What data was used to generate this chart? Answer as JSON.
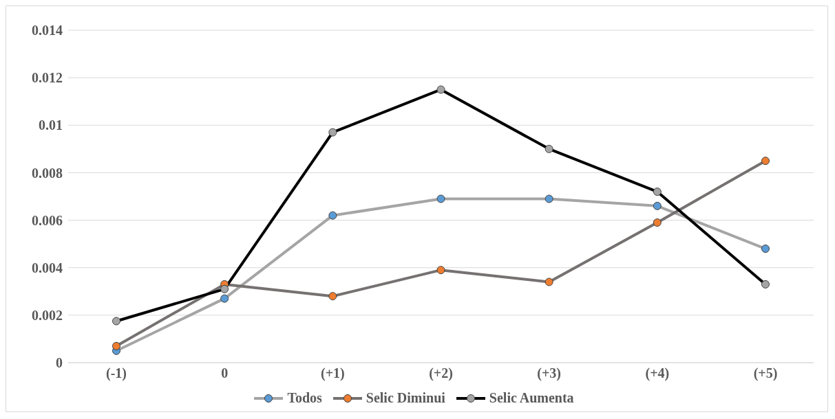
{
  "chart_data": {
    "type": "line",
    "categories": [
      "(-1)",
      "0",
      "(+1)",
      "(+2)",
      "(+3)",
      "(+4)",
      "(+5)"
    ],
    "series": [
      {
        "name": "Todos",
        "color": "#a5a5a5",
        "colors": [
          "#5b9bd5",
          "#5b9bd5",
          "#5b9bd5",
          "#5b9bd5",
          "#5b9bd5",
          "#5b9bd5",
          "#5b9bd5"
        ],
        "values": [
          0.0005,
          0.0027,
          0.0062,
          0.0069,
          0.0069,
          0.0066,
          0.0048
        ]
      },
      {
        "name": "Selic Diminui",
        "color": "#767171",
        "colors": [
          "#ed7d31",
          "#ed7d31",
          "#ed7d31",
          "#ed7d31",
          "#ed7d31",
          "#ed7d31",
          "#ed7d31"
        ],
        "values": [
          0.0007,
          0.0033,
          0.0028,
          0.0039,
          0.0034,
          0.0059,
          0.0085
        ]
      },
      {
        "name": "Selic Aumenta",
        "color": "#000000",
        "colors": [
          "#a5a5a5",
          "#a5a5a5",
          "#a5a5a5",
          "#a5a5a5",
          "#a5a5a5",
          "#a5a5a5",
          "#a5a5a5"
        ],
        "values": [
          0.00175,
          0.0031,
          0.0097,
          0.0115,
          0.009,
          0.0072,
          0.0033
        ]
      }
    ],
    "ylim": [
      0,
      0.014
    ],
    "yticks": [
      0,
      0.002,
      0.004,
      0.006,
      0.008,
      0.01,
      0.012,
      0.014
    ],
    "grid": "y",
    "legend": "bottom",
    "marker": "circle",
    "line_style": "solid"
  }
}
